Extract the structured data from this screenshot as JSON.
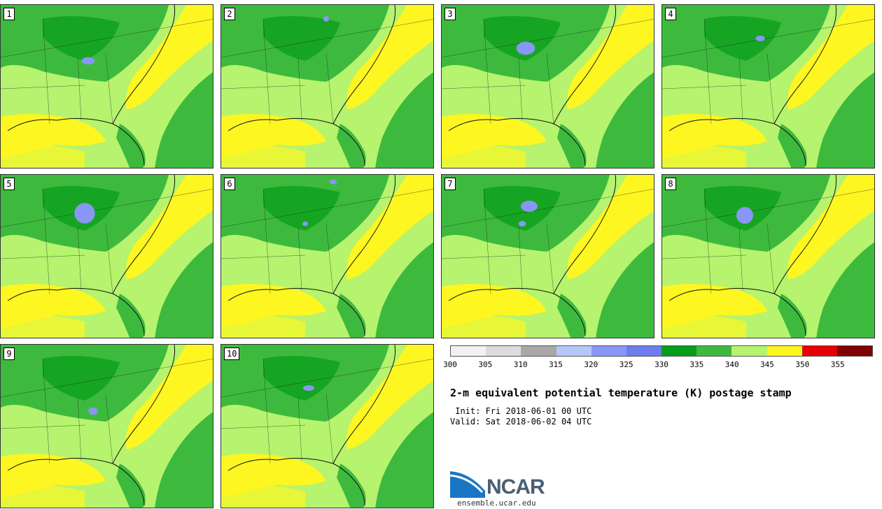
{
  "panels": [
    {
      "label": "1",
      "blobs": [
        [
          125,
          80,
          14,
          8
        ]
      ]
    },
    {
      "label": "2",
      "blobs": [
        [
          150,
          20,
          6,
          6
        ]
      ]
    },
    {
      "label": "3",
      "blobs": [
        [
          120,
          62,
          20,
          14
        ]
      ]
    },
    {
      "label": "4",
      "blobs": [
        [
          140,
          48,
          10,
          6
        ]
      ]
    },
    {
      "label": "5",
      "blobs": [
        [
          120,
          55,
          22,
          22
        ]
      ]
    },
    {
      "label": "6",
      "blobs": [
        [
          160,
          10,
          8,
          5
        ],
        [
          120,
          70,
          6,
          5
        ]
      ]
    },
    {
      "label": "7",
      "blobs": [
        [
          125,
          45,
          18,
          12
        ],
        [
          115,
          70,
          8,
          6
        ]
      ]
    },
    {
      "label": "8",
      "blobs": [
        [
          118,
          58,
          18,
          18
        ]
      ]
    },
    {
      "label": "9",
      "blobs": [
        [
          132,
          95,
          10,
          8
        ]
      ]
    },
    {
      "label": "10",
      "blobs": [
        [
          125,
          62,
          12,
          6
        ]
      ]
    }
  ],
  "colorbar": {
    "colors": [
      "#f2f2f2",
      "#dcdcdc",
      "#a8a8a8",
      "#b4c8f8",
      "#8896f5",
      "#6d7cee",
      "#089d1a",
      "#3dba3d",
      "#b6f36e",
      "#fdf621",
      "#e50004",
      "#7e0000"
    ],
    "ticks": [
      "300",
      "305",
      "310",
      "315",
      "320",
      "325",
      "330",
      "335",
      "340",
      "345",
      "350",
      "355"
    ]
  },
  "title": "2-m equivalent potential temperature (K) postage stamp",
  "init": " Init: Fri 2018-06-01 00 UTC",
  "valid": "Valid: Sat 2018-06-02 04 UTC",
  "logo_text": "NCAR",
  "url": "ensemble.ucar.edu"
}
